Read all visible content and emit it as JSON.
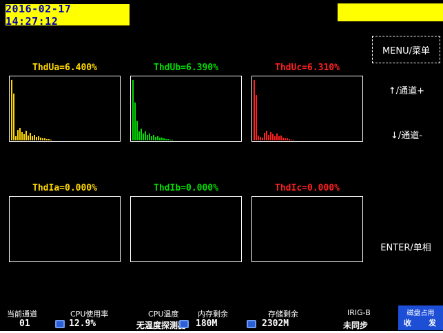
{
  "header": {
    "datetime": "2016-02-17 14:27:12"
  },
  "side_panel": {
    "menu": "MENU/菜单",
    "channel_up": "↑/通道+",
    "channel_down": "↓/通道-",
    "enter": "ENTER/单相"
  },
  "colors": {
    "banner_bg": "#ffff00",
    "banner_text": "#0000bb",
    "yellow": "#ffd700",
    "green": "#00dd00",
    "red": "#ff2020",
    "status_blue": "#1d4fd6"
  },
  "charts": [
    {
      "id": "ThdUa",
      "type": "bar",
      "title": "ThdUa=6.400%",
      "color": "#ffd700",
      "values": [
        96,
        74,
        6,
        16,
        20,
        13,
        10,
        15,
        8,
        12,
        6,
        9,
        5,
        7,
        4,
        3,
        3,
        2,
        2,
        1
      ]
    },
    {
      "id": "ThdUb",
      "type": "bar",
      "title": "ThdUb=6.390%",
      "color": "#00dd00",
      "values": [
        96,
        60,
        30,
        14,
        18,
        11,
        14,
        9,
        11,
        7,
        9,
        5,
        6,
        4,
        4,
        3,
        2,
        2,
        1,
        1
      ]
    },
    {
      "id": "ThdUc",
      "type": "bar",
      "title": "ThdUc=6.310%",
      "color": "#ff2020",
      "values": [
        96,
        72,
        8,
        5,
        4,
        12,
        15,
        9,
        13,
        10,
        7,
        11,
        6,
        8,
        4,
        3,
        3,
        2,
        1,
        1
      ]
    },
    {
      "id": "ThdIa",
      "type": "bar",
      "title": "ThdIa=0.000%",
      "color": "#ffd700",
      "values": []
    },
    {
      "id": "ThdIb",
      "type": "bar",
      "title": "ThdIb=0.000%",
      "color": "#00dd00",
      "values": []
    },
    {
      "id": "ThdIc",
      "type": "bar",
      "title": "ThdIc=0.000%",
      "color": "#ff2020",
      "values": []
    }
  ],
  "status_bar": {
    "channel_label": "当前通道",
    "channel_value": "01",
    "cpu_label": "CPU使用率",
    "cpu_value": "12.9%",
    "cpu_temp_label": "CPU温度",
    "cpu_temp_value": "无温度探测器",
    "mem_label": "内存剩余",
    "mem_value": "180M",
    "storage_label": "存储剩余",
    "storage_value": "2302M",
    "irig_label": "IRIG-B",
    "irig_value": "未同步",
    "disk_title": "磁盘占用",
    "disk_rx": "收",
    "disk_tx": "发"
  }
}
